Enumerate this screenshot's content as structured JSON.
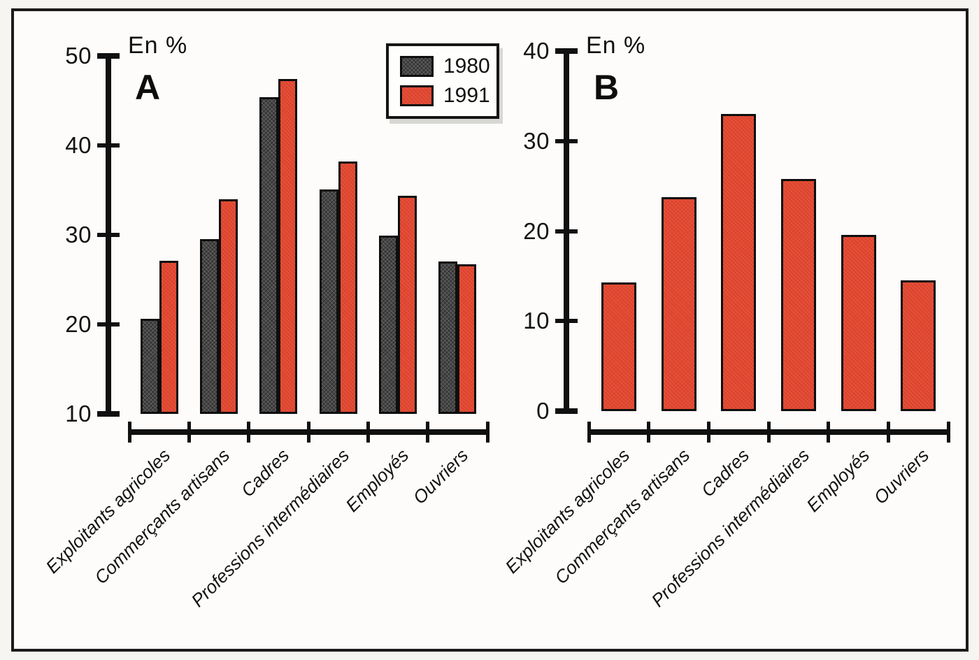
{
  "figure": {
    "background": "#fdfcfa",
    "frame_color": "#1b1b1b",
    "accent_red": "#e2462f",
    "series_dark": "#474747"
  },
  "legend": {
    "items": [
      {
        "label": "1980",
        "color": "#474747",
        "pattern": "crosshatch-dark"
      },
      {
        "label": "1991",
        "color": "#e2462f",
        "pattern": "solid-red"
      }
    ]
  },
  "chart_data": [
    {
      "id": "A",
      "panel": "A",
      "type": "bar",
      "axis_title": "En %",
      "categories": [
        "Exploitants agricoles",
        "Commerçants artisans",
        "Cadres",
        "Professions intermédiaires",
        "Employés",
        "Ouvriers"
      ],
      "series": [
        {
          "name": "1980",
          "color": "#474747",
          "values": [
            20.6,
            29.5,
            45.4,
            35.1,
            29.9,
            27.0
          ]
        },
        {
          "name": "1991",
          "color": "#e2462f",
          "values": [
            27.1,
            34.0,
            47.4,
            38.2,
            34.4,
            26.7
          ]
        }
      ],
      "ylim": [
        10,
        50
      ],
      "yticks": [
        10,
        20,
        30,
        40,
        50
      ],
      "grid": false,
      "legend_position": "top-right"
    },
    {
      "id": "B",
      "panel": "B",
      "type": "bar",
      "axis_title": "En %",
      "categories": [
        "Exploitants agricoles",
        "Commerçants artisans",
        "Cadres",
        "Professions intermédiaires",
        "Employés",
        "Ouvriers"
      ],
      "series": [
        {
          "name": "1991",
          "color": "#e2462f",
          "values": [
            14.3,
            23.8,
            33.0,
            25.8,
            19.6,
            14.5
          ]
        }
      ],
      "ylim": [
        0,
        40
      ],
      "yticks": [
        0,
        10,
        20,
        30,
        40
      ],
      "grid": false,
      "legend_position": "none"
    }
  ]
}
